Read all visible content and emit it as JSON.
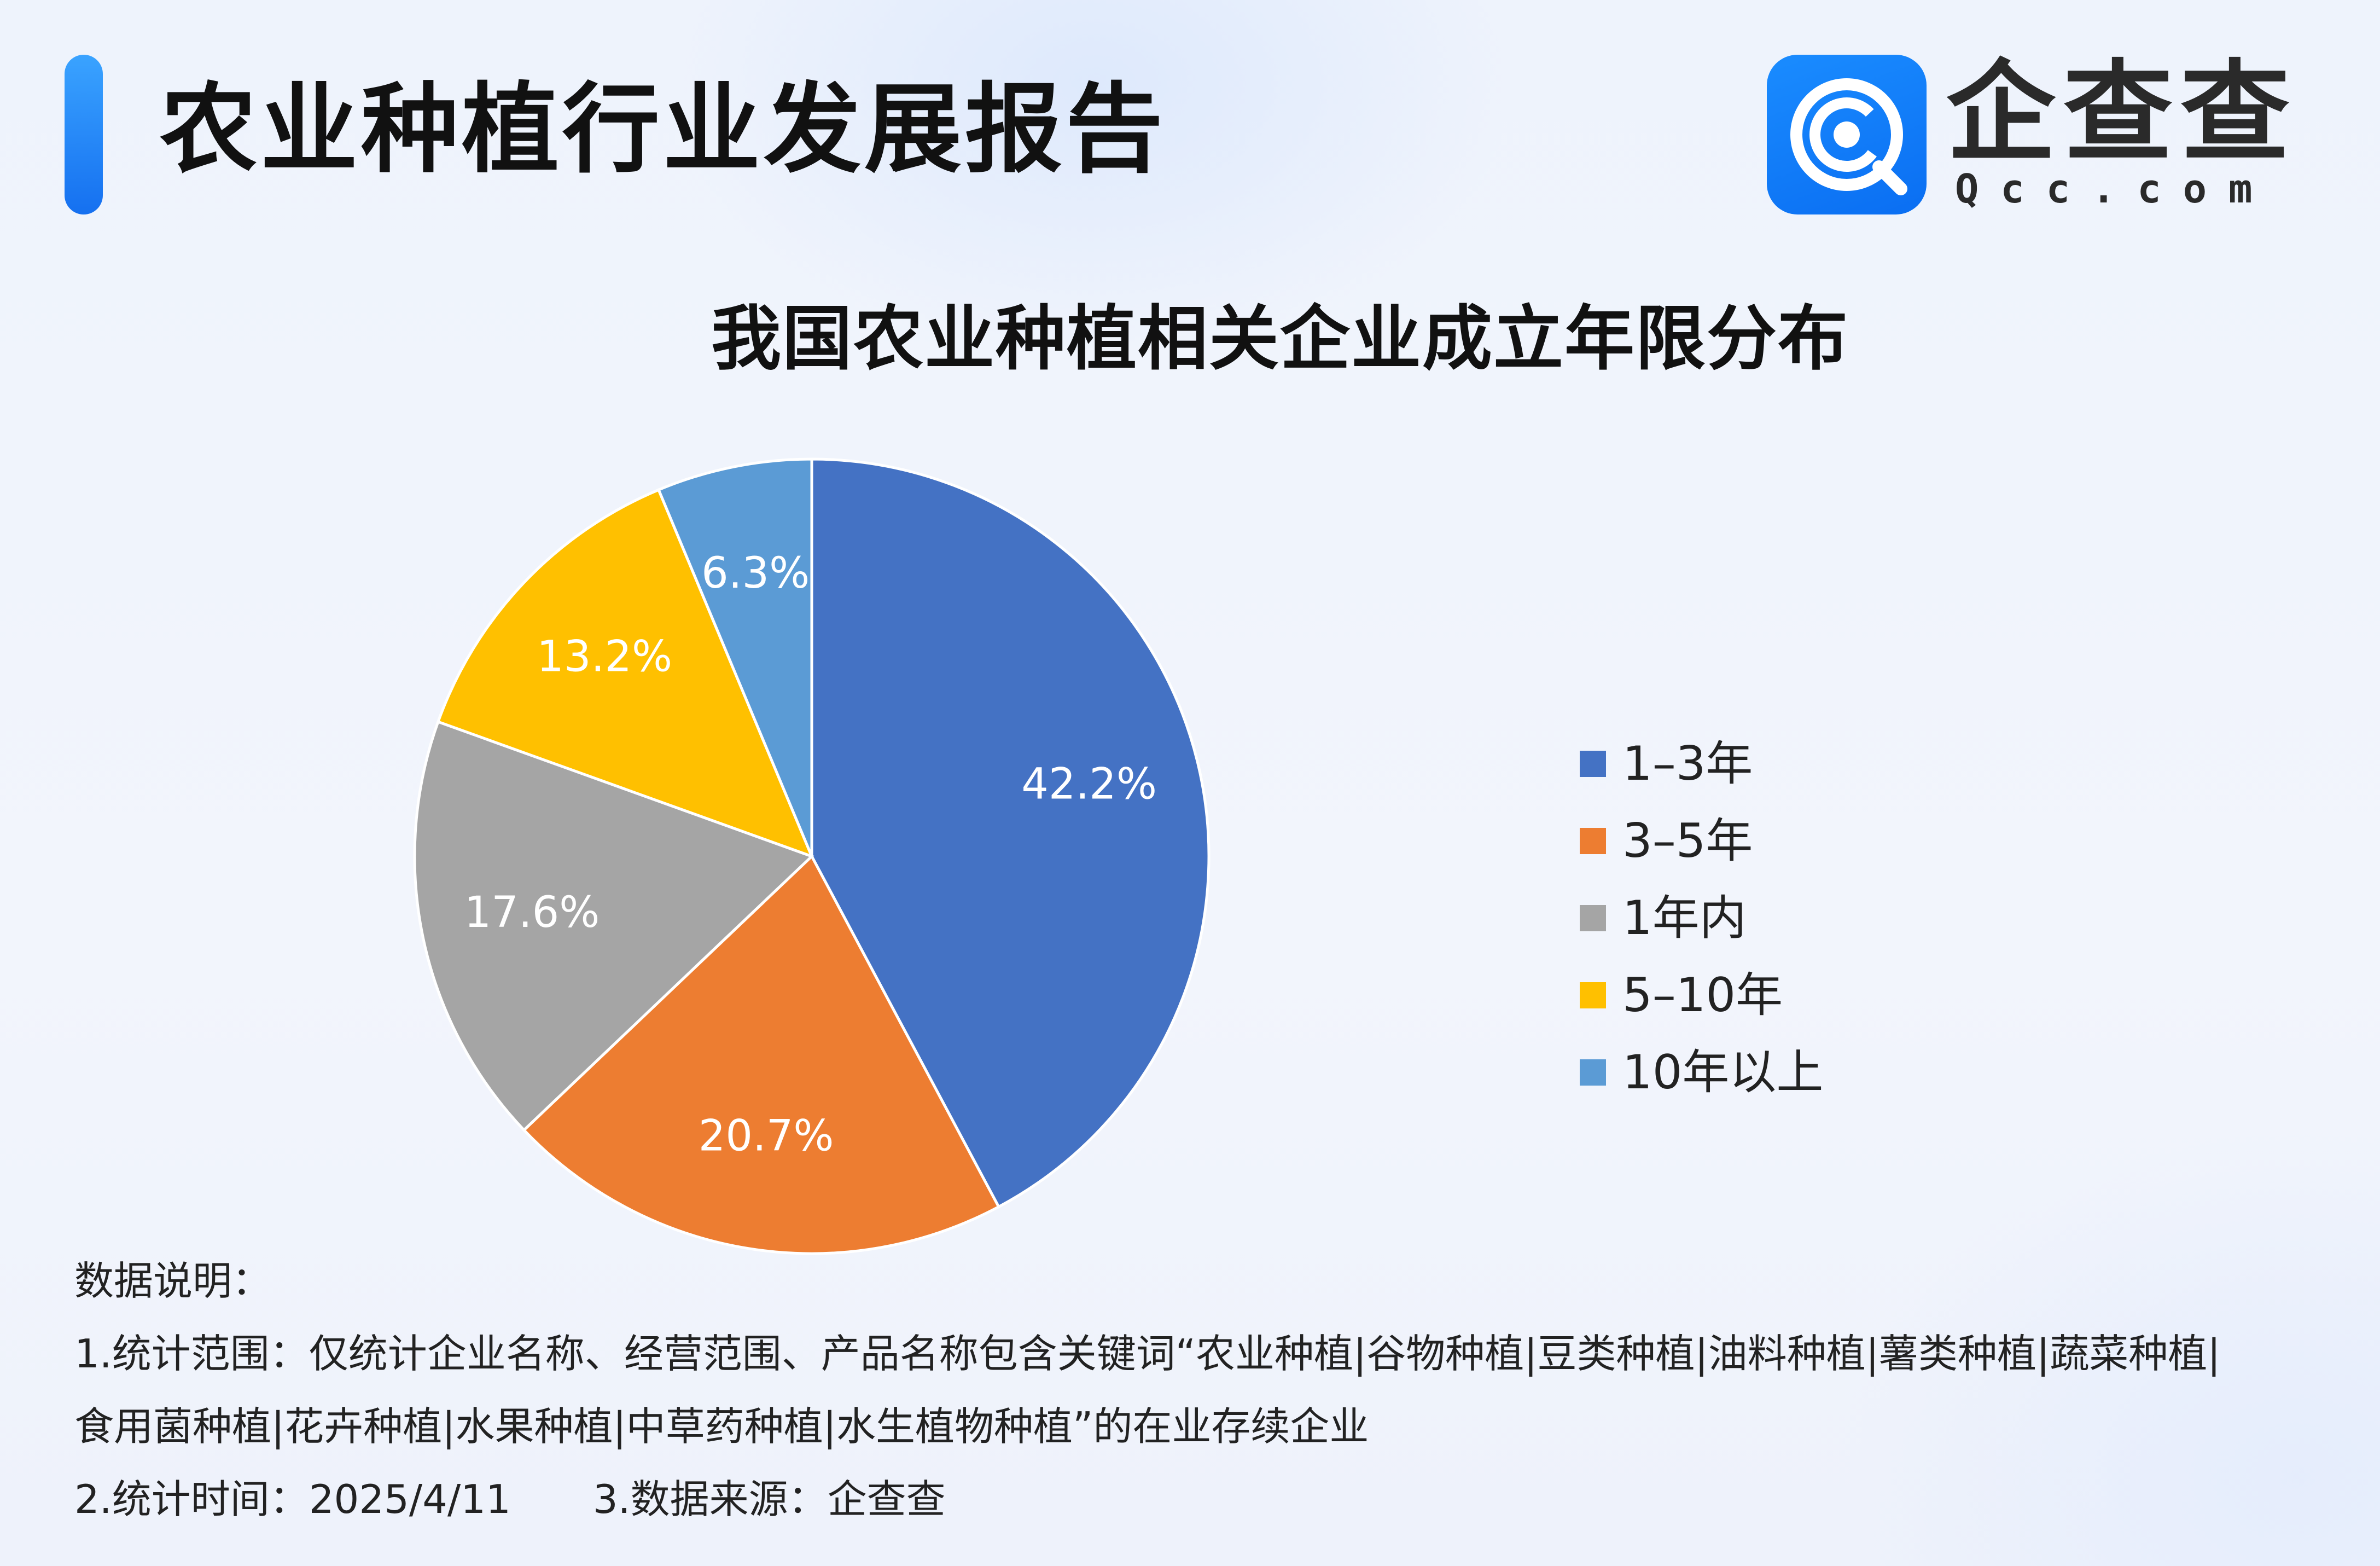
{
  "header": {
    "title": "农业种植行业发展报告",
    "logo_name": "企查查",
    "logo_domain": "Qcc.com",
    "accent_color": "#1a7ff5"
  },
  "chart_data": {
    "type": "pie",
    "title": "我国农业种植相关企业成立年限分布",
    "legend_position": "right",
    "slices": [
      {
        "label": "1–3年",
        "value": 42.2,
        "value_label": "42.2%",
        "color": "#4472c4"
      },
      {
        "label": "3–5年",
        "value": 20.7,
        "value_label": "20.7%",
        "color": "#ed7d31"
      },
      {
        "label": "1年内",
        "value": 17.6,
        "value_label": "17.6%",
        "color": "#a5a5a5"
      },
      {
        "label": "5–10年",
        "value": 13.2,
        "value_label": "13.2%",
        "color": "#ffc000"
      },
      {
        "label": "10年以上",
        "value": 6.3,
        "value_label": "6.3%",
        "color": "#5b9bd5"
      }
    ]
  },
  "notes": {
    "heading": "数据说明：",
    "scope_line1": "1.统计范围：仅统计企业名称、经营范围、产品名称包含关键词“农业种植|谷物种植|豆类种植|油料种植|薯类种植|蔬菜种植|",
    "scope_line2": "食用菌种植|花卉种植|水果种植|中草药种植|水生植物种植”的在业存续企业",
    "time": "2.统计时间：2025/4/11",
    "source": "3.数据来源：企查查"
  }
}
